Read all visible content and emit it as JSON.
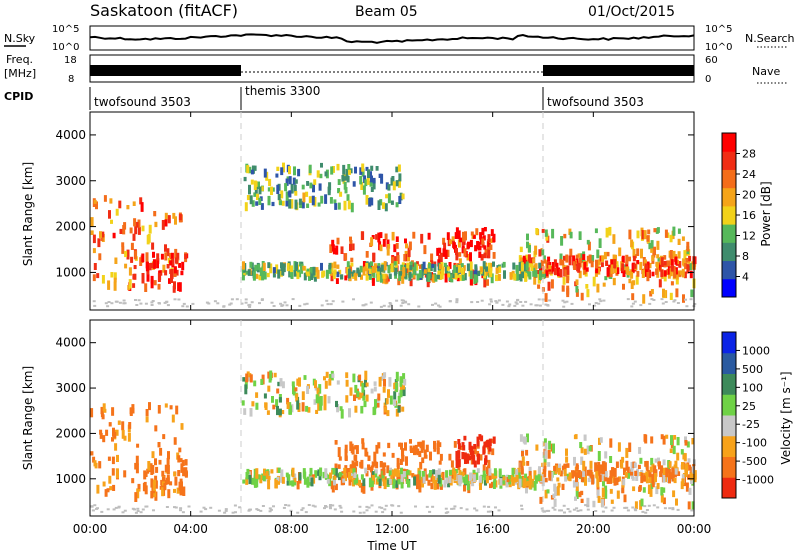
{
  "header": {
    "station": "Saskatoon (fitACF)",
    "beam": "Beam 05",
    "date": "01/Oct/2015"
  },
  "top_panels": {
    "nsky_label": "N.Sky",
    "nsky_ticks": [
      "10^5",
      "10^0"
    ],
    "nsearch_label": "N.Search",
    "nsearch_ticks": [
      "10^5",
      "10^0"
    ],
    "freq_label_1": "Freq.",
    "freq_label_2": "[MHz]",
    "freq_ticks": [
      "18",
      "8"
    ],
    "nave_label": "Nave",
    "nave_ticks": [
      "60",
      "0"
    ],
    "cpid_label": "CPID",
    "cpid_segments": [
      {
        "label": "twofsound 3503",
        "start": 0,
        "end": 6
      },
      {
        "label": "themis 3300",
        "start": 6,
        "end": 18
      },
      {
        "label": "twofsound 3503",
        "start": 18,
        "end": 24
      }
    ]
  },
  "power_panel": {
    "ylabel": "Slant Range [km]",
    "yticks": [
      "4000",
      "3000",
      "2000",
      "1000"
    ],
    "colorbar_label": "Power [dB]",
    "colorbar_ticks": [
      "28",
      "24",
      "20",
      "16",
      "12",
      "8",
      "4"
    ]
  },
  "velocity_panel": {
    "ylabel": "Slant Range [km]",
    "yticks": [
      "4000",
      "3000",
      "2000",
      "1000"
    ],
    "colorbar_label": "Velocity [m s⁻¹]",
    "colorbar_ticks": [
      "1000",
      "500",
      "100",
      "25",
      "-25",
      "-100",
      "-500",
      "-1000"
    ]
  },
  "xaxis": {
    "label": "Time UT",
    "ticks": [
      "00:00",
      "04:00",
      "08:00",
      "12:00",
      "16:00",
      "20:00",
      "00:00"
    ]
  },
  "chart_data": {
    "type": "heatmap",
    "title": "Saskatoon (fitACF) Beam 05 01/Oct/2015",
    "xlabel": "Time UT",
    "xlim": [
      0,
      24
    ],
    "ylim": [
      180,
      4500
    ],
    "ylabel": "Slant Range [km]",
    "power_scale": {
      "min": 0,
      "max": 30,
      "unit": "dB",
      "ticks": [
        4,
        8,
        12,
        16,
        20,
        24,
        28
      ]
    },
    "velocity_scale": {
      "min": -1000,
      "max": 1000,
      "unit": "m s-1",
      "ticks": [
        1000,
        500,
        100,
        25,
        -25,
        -100,
        -500,
        -1000
      ]
    },
    "colors": {
      "power": [
        "#0000ff",
        "#2e55a8",
        "#3f8c6d",
        "#56b85a",
        "#f2d21a",
        "#f5a419",
        "#f46d1a",
        "#f12d14",
        "#ff0000"
      ],
      "velocity": [
        "#0b24e6",
        "#2a5aa0",
        "#3d8a5a",
        "#6fd246",
        "#c8c8c8",
        "#f7a21a",
        "#f5731a",
        "#ee2a10"
      ],
      "ground_scatter": "#bebebe"
    },
    "echo_regions": [
      {
        "t0": 0.0,
        "t1": 3.6,
        "r0": 700,
        "r1": 2700,
        "power_db": 22,
        "velocity": -150
      },
      {
        "t0": 2.0,
        "t1": 3.8,
        "r0": 700,
        "r1": 1500,
        "power_db": 28,
        "velocity": -200
      },
      {
        "t0": 6.0,
        "t1": 12.5,
        "r0": 2500,
        "r1": 3400,
        "power_db": 10,
        "velocity": 0
      },
      {
        "t0": 9.5,
        "t1": 16.0,
        "r0": 850,
        "r1": 1900,
        "power_db": 26,
        "velocity": -300
      },
      {
        "t0": 14.5,
        "t1": 16.0,
        "r0": 1400,
        "r1": 2000,
        "power_db": 27,
        "velocity": -700
      },
      {
        "t0": 17.0,
        "t1": 24.0,
        "r0": 500,
        "r1": 2000,
        "power_db": 18,
        "velocity": -50
      },
      {
        "t0": 17.0,
        "t1": 24.0,
        "r0": 1000,
        "r1": 1400,
        "power_db": 24,
        "velocity": -100
      },
      {
        "t0": 6.0,
        "t1": 18.0,
        "r0": 950,
        "r1": 1250,
        "power_db": 12,
        "velocity": 0
      }
    ]
  }
}
